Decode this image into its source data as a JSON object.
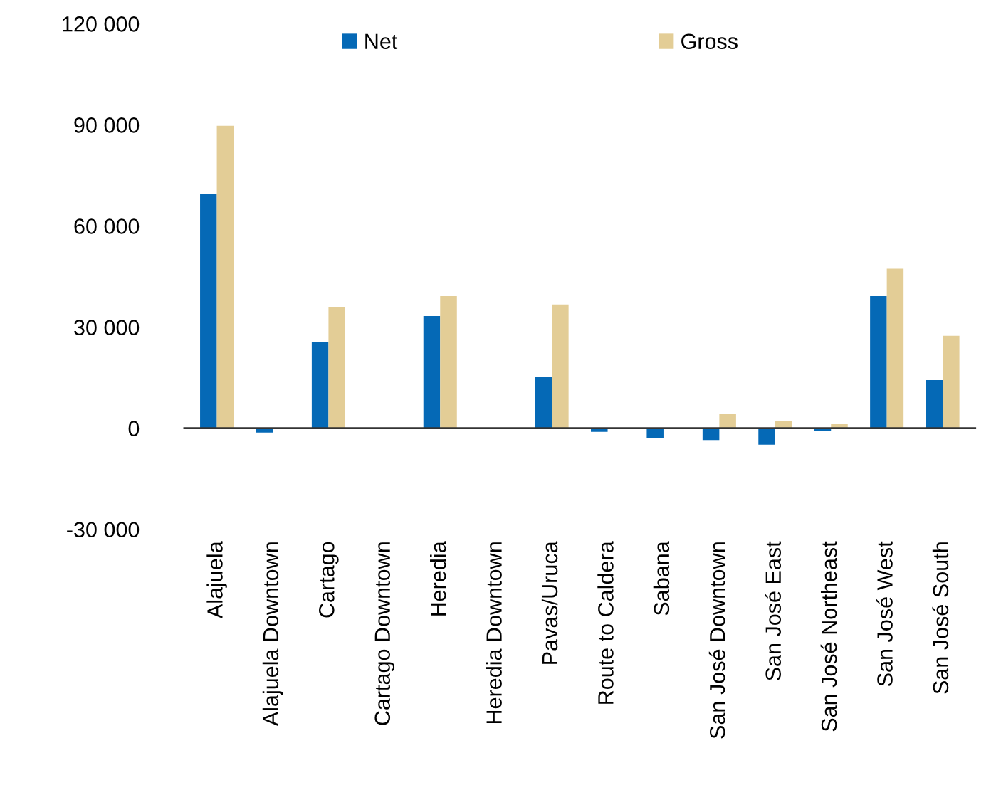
{
  "chart_data": {
    "type": "bar",
    "categories": [
      "Alajuela",
      "Alajuela Downtown",
      "Cartago",
      "Cartago Downtown",
      "Heredia",
      "Heredia Downtown",
      "Pavas/Uruca",
      "Route to Caldera",
      "Sabana",
      "San José Downtown",
      "San José East",
      "San José Northeast",
      "San José West",
      "San José South"
    ],
    "series": [
      {
        "name": "Net",
        "color": "#0569b6",
        "values": [
          69600,
          -1300,
          25600,
          null,
          33300,
          null,
          15100,
          -1100,
          -3000,
          -3500,
          -4900,
          -800,
          39200,
          14300
        ]
      },
      {
        "name": "Gross",
        "color": "#e3cd96",
        "values": [
          89700,
          null,
          35900,
          null,
          39200,
          null,
          36700,
          null,
          null,
          4200,
          2200,
          1200,
          47300,
          27400
        ]
      }
    ],
    "ylim": [
      -30000,
      120000
    ],
    "yticks": [
      {
        "value": -30000,
        "label": "-30 000"
      },
      {
        "value": 0,
        "label": "0"
      },
      {
        "value": 30000,
        "label": "30 000"
      },
      {
        "value": 60000,
        "label": "60 000"
      },
      {
        "value": 90000,
        "label": "90 000"
      },
      {
        "value": 120000,
        "label": "120 000"
      }
    ],
    "legend": "top"
  }
}
